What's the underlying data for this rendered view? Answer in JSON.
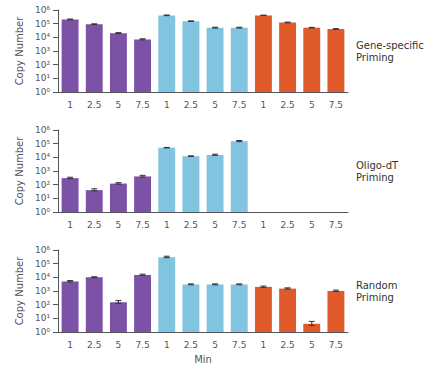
{
  "chart_data": [
    {
      "type": "bar",
      "annotation": "Gene-specific\nPriming",
      "ylabel": "Copy Number",
      "categories": [
        "1",
        "2.5",
        "5",
        "7.5",
        "1",
        "2.5",
        "5",
        "7.5",
        "1",
        "2.5",
        "5",
        "7.5"
      ],
      "values": [
        200000,
        90000,
        20000,
        7000,
        400000,
        150000,
        50000,
        50000,
        400000,
        120000,
        50000,
        40000
      ],
      "errors_lower": [
        10000,
        4000,
        1000,
        400,
        15000,
        5000,
        2500,
        2500,
        10000,
        5000,
        2000,
        1500
      ],
      "errors_upper": [
        20000,
        8000,
        2000,
        800,
        30000,
        10000,
        5000,
        5000,
        20000,
        10000,
        4000,
        3000
      ],
      "colors": [
        "#7B52A6",
        "#7B52A6",
        "#7B52A6",
        "#7B52A6",
        "#80C4E0",
        "#80C4E0",
        "#80C4E0",
        "#80C4E0",
        "#E05A2B",
        "#E05A2B",
        "#E05A2B",
        "#E05A2B"
      ],
      "log": "y",
      "ylim": [
        1,
        1000000
      ],
      "yticks": [
        {
          "value": 1,
          "label": "10⁰"
        },
        {
          "value": 10,
          "label": "10¹"
        },
        {
          "value": 100,
          "label": "10²"
        },
        {
          "value": 1000,
          "label": "10³"
        },
        {
          "value": 10000,
          "label": "10⁴"
        },
        {
          "value": 100000,
          "label": "10⁵"
        },
        {
          "value": 1000000,
          "label": "10⁶"
        }
      ],
      "grid": false
    },
    {
      "type": "bar",
      "annotation": "Oligo-dT\nPriming",
      "ylabel": "Copy Number",
      "categories": [
        "1",
        "2.5",
        "5",
        "7.5",
        "1",
        "2.5",
        "5",
        "7.5",
        "1",
        "2.5",
        "5",
        "7.5"
      ],
      "values": [
        300,
        40,
        120,
        400,
        50000,
        12000,
        15000,
        150000,
        null,
        null,
        null,
        null
      ],
      "errors_lower": [
        25,
        5,
        10,
        40,
        1500,
        400,
        1000,
        10000,
        null,
        null,
        null,
        null
      ],
      "errors_upper": [
        50,
        10,
        20,
        80,
        3000,
        800,
        2000,
        20000,
        null,
        null,
        null,
        null
      ],
      "colors": [
        "#7B52A6",
        "#7B52A6",
        "#7B52A6",
        "#7B52A6",
        "#80C4E0",
        "#80C4E0",
        "#80C4E0",
        "#80C4E0",
        null,
        null,
        null,
        null
      ],
      "log": "y",
      "ylim": [
        1,
        1000000
      ],
      "yticks": [
        {
          "value": 1,
          "label": "10⁰"
        },
        {
          "value": 10,
          "label": "10¹"
        },
        {
          "value": 100,
          "label": "10²"
        },
        {
          "value": 1000,
          "label": "10³"
        },
        {
          "value": 10000,
          "label": "10⁴"
        },
        {
          "value": 100000,
          "label": "10⁵"
        },
        {
          "value": 1000000,
          "label": "10⁶"
        }
      ],
      "grid": false
    },
    {
      "type": "bar",
      "annotation": "Random\nPriming",
      "ylabel": "Copy Number",
      "xlabel": "Min",
      "categories": [
        "1",
        "2.5",
        "5",
        "7.5",
        "1",
        "2.5",
        "5",
        "7.5",
        "1",
        "2.5",
        "5",
        "7.5"
      ],
      "values": [
        5000,
        10000,
        150,
        15000,
        300000,
        3000,
        3000,
        3000,
        2000,
        1500,
        4,
        1000
      ],
      "errors_lower": [
        400,
        500,
        25,
        1000,
        25000,
        150,
        150,
        150,
        150,
        100,
        1,
        75
      ],
      "errors_upper": [
        800,
        1000,
        50,
        2000,
        50000,
        300,
        300,
        300,
        300,
        200,
        2,
        150
      ],
      "colors": [
        "#7B52A6",
        "#7B52A6",
        "#7B52A6",
        "#7B52A6",
        "#80C4E0",
        "#80C4E0",
        "#80C4E0",
        "#80C4E0",
        "#E05A2B",
        "#E05A2B",
        "#E05A2B",
        "#E05A2B"
      ],
      "log": "y",
      "ylim": [
        1,
        1000000
      ],
      "yticks": [
        {
          "value": 1,
          "label": "10⁰"
        },
        {
          "value": 10,
          "label": "10¹"
        },
        {
          "value": 100,
          "label": "10²"
        },
        {
          "value": 1000,
          "label": "10³"
        },
        {
          "value": 10000,
          "label": "10⁴"
        },
        {
          "value": 100000,
          "label": "10⁵"
        },
        {
          "value": 1000000,
          "label": "10⁶"
        }
      ],
      "grid": false
    }
  ]
}
